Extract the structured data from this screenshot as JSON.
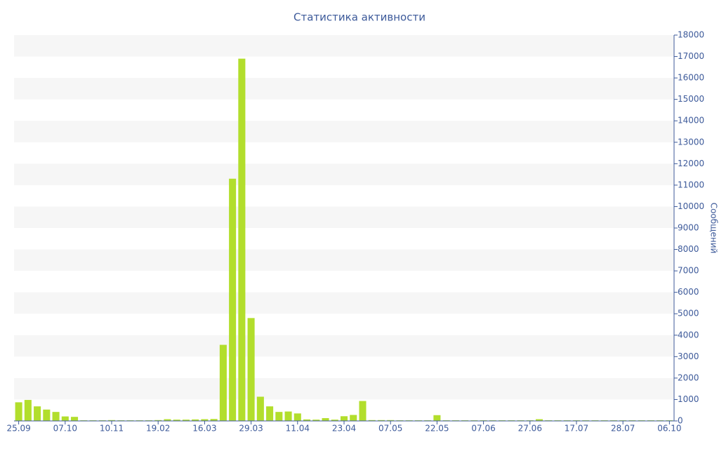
{
  "chart_data": {
    "type": "bar",
    "title": "Статистика активности",
    "y_label": "Сообщений",
    "categories": [
      "25.09",
      null,
      null,
      null,
      null,
      "07.10",
      null,
      null,
      null,
      null,
      "10.11",
      null,
      null,
      null,
      null,
      "19.02",
      null,
      null,
      null,
      null,
      "16.03",
      null,
      null,
      null,
      null,
      "29.03",
      null,
      null,
      null,
      null,
      "11.04",
      null,
      null,
      null,
      null,
      "23.04",
      null,
      null,
      null,
      null,
      "07.05",
      null,
      null,
      null,
      null,
      "22.05",
      null,
      null,
      null,
      null,
      "07.06",
      null,
      null,
      null,
      null,
      "27.06",
      null,
      null,
      null,
      null,
      "17.07",
      null,
      null,
      null,
      null,
      "28.07",
      null,
      null,
      null,
      null,
      "06.10"
    ],
    "values": [
      870,
      980,
      680,
      530,
      420,
      210,
      190,
      30,
      30,
      30,
      40,
      30,
      30,
      30,
      30,
      40,
      80,
      60,
      60,
      70,
      80,
      90,
      3550,
      11300,
      16900,
      4800,
      1130,
      680,
      420,
      440,
      350,
      70,
      60,
      130,
      60,
      220,
      280,
      930,
      40,
      40,
      40,
      30,
      30,
      30,
      30,
      270,
      30,
      30,
      30,
      30,
      30,
      30,
      30,
      30,
      30,
      30,
      80,
      30,
      30,
      30,
      30,
      30,
      30,
      30,
      30,
      30,
      30,
      30,
      30,
      30,
      30
    ],
    "color": "#b2de2c",
    "ylim": [
      0,
      18000
    ],
    "yticks": [
      0,
      1000,
      2000,
      3000,
      4000,
      5000,
      6000,
      7000,
      8000,
      9000,
      10000,
      11000,
      12000,
      13000,
      14000,
      15000,
      16000,
      17000,
      18000
    ],
    "grid": "bands",
    "y_axis_side": "right"
  }
}
